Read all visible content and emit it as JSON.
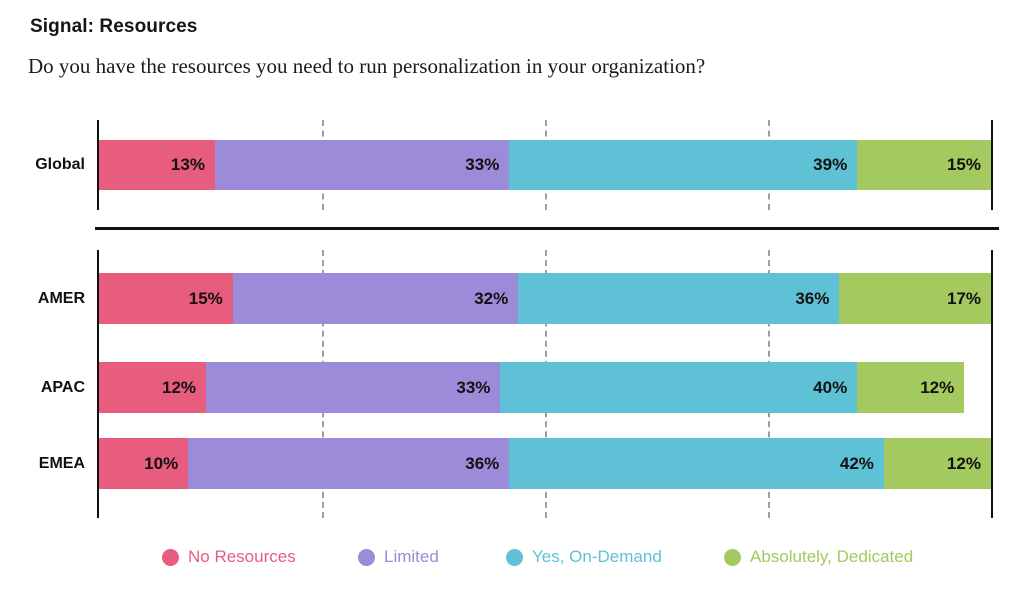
{
  "header": {
    "title": "Signal: Resources",
    "subtitle": "Do you have the resources you need to run personalization in your organization?"
  },
  "colors": {
    "no_resources": "#E85C7D",
    "limited": "#9B8BD8",
    "yes_on_demand": "#5EC1D5",
    "absolutely_dedicated": "#A4C95E",
    "axis": "#111111",
    "gridline": "#9D9D9D",
    "value_label": "#121212"
  },
  "chart_data": {
    "type": "bar",
    "orientation": "horizontal",
    "stacked": true,
    "unit": "%",
    "xlim": [
      0,
      100
    ],
    "grid_on": true,
    "gridlines_percent": [
      25,
      50,
      75
    ],
    "categories": [
      "Global",
      "AMER",
      "APAC",
      "EMEA"
    ],
    "groups": [
      [
        "Global"
      ],
      [
        "AMER",
        "APAC",
        "EMEA"
      ]
    ],
    "series": [
      {
        "name": "No Resources",
        "color": "#E85C7D",
        "values": [
          13,
          15,
          12,
          10
        ]
      },
      {
        "name": "Limited",
        "color": "#9B8BD8",
        "values": [
          33,
          32,
          33,
          36
        ]
      },
      {
        "name": "Yes, On-Demand",
        "color": "#5EC1D5",
        "values": [
          39,
          36,
          40,
          42
        ]
      },
      {
        "name": "Absolutely, Dedicated",
        "color": "#A4C95E",
        "values": [
          15,
          17,
          12,
          12
        ]
      }
    ],
    "legend": [
      "No Resources",
      "Limited",
      "Yes, On-Demand",
      "Absolutely, Dedicated"
    ],
    "legend_position": "bottom"
  }
}
